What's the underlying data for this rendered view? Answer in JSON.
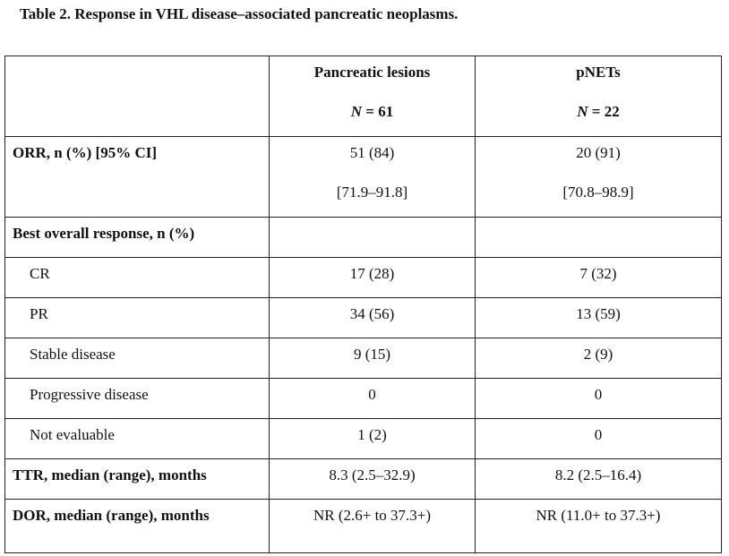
{
  "caption": "Table 2. Response in VHL disease–associated pancreatic neoplasms.",
  "header": {
    "columns": [
      {
        "label": "Pancreatic lesions",
        "n_label": "N",
        "n_value": "= 61"
      },
      {
        "label": "pNETs",
        "n_label": "N",
        "n_value": "= 22"
      }
    ]
  },
  "rows": {
    "orr": {
      "label": "ORR, n (%) [95% CI]",
      "col1": "51 (84)",
      "col1_ci": "[71.9–91.8]",
      "col2": "20 (91)",
      "col2_ci": "[70.8–98.9]"
    },
    "best": {
      "label": "Best overall response, n (%)",
      "col1": "",
      "col2": ""
    },
    "cr": {
      "label": "CR",
      "col1": "17 (28)",
      "col2": "7 (32)"
    },
    "pr": {
      "label": "PR",
      "col1": "34 (56)",
      "col2": "13 (59)"
    },
    "sd": {
      "label": "Stable disease",
      "col1": "9 (15)",
      "col2": "2 (9)"
    },
    "pd": {
      "label": "Progressive disease",
      "col1": "0",
      "col2": "0"
    },
    "ne": {
      "label": "Not evaluable",
      "col1": "1 (2)",
      "col2": "0"
    },
    "ttr": {
      "label": "TTR, median (range), months",
      "col1": "8.3 (2.5–32.9)",
      "col2": "8.2 (2.5–16.4)"
    },
    "dor": {
      "label": "DOR, median (range), months",
      "col1": "NR (2.6+ to 37.3+)",
      "col2": "NR (11.0+ to 37.3+)"
    }
  }
}
